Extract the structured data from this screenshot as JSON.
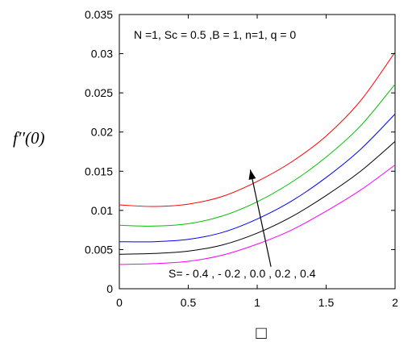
{
  "chart_data": {
    "type": "line",
    "title": "",
    "ylabel": "f′′(0)",
    "xlabel": "□",
    "xlim": [
      0,
      2
    ],
    "ylim": [
      0,
      0.035
    ],
    "x_ticks": [
      0,
      0.5,
      1,
      1.5,
      2
    ],
    "x_tick_labels": [
      "0",
      "0.5",
      "1",
      "1.5",
      "2"
    ],
    "y_ticks": [
      0,
      0.005,
      0.01,
      0.015,
      0.02,
      0.025,
      0.03,
      0.035
    ],
    "y_tick_labels": [
      "0",
      "0.005",
      "0.01",
      "0.015",
      "0.02",
      "0.025",
      "0.03",
      "0.035"
    ],
    "grid": false,
    "annotations": {
      "params": "N =1, Sc = 0.5 ,B = 1, n=1, q = 0",
      "series_label": "S= - 0.4 , - 0.2 , 0.0 , 0.2 , 0.4",
      "arrow_from": [
        1.1,
        0.0028
      ],
      "arrow_to": [
        0.95,
        0.0152
      ]
    },
    "x": [
      0,
      0.25,
      0.5,
      0.75,
      1.0,
      1.25,
      1.5,
      1.75,
      2.0
    ],
    "series": [
      {
        "color": "#ff0000",
        "values": [
          0.0107,
          0.0105,
          0.0108,
          0.0118,
          0.0137,
          0.0162,
          0.0195,
          0.024,
          0.0302
        ]
      },
      {
        "color": "#00c000",
        "values": [
          0.0081,
          0.008,
          0.0083,
          0.0093,
          0.0111,
          0.0136,
          0.0168,
          0.0208,
          0.0261
        ]
      },
      {
        "color": "#0000ff",
        "values": [
          0.006,
          0.006,
          0.0063,
          0.0072,
          0.0089,
          0.0112,
          0.0142,
          0.0178,
          0.0223
        ]
      },
      {
        "color": "#000000",
        "values": [
          0.0044,
          0.0045,
          0.0048,
          0.0056,
          0.0071,
          0.0092,
          0.0119,
          0.015,
          0.0188
        ]
      },
      {
        "color": "#ff00ff",
        "values": [
          0.0031,
          0.0032,
          0.0035,
          0.0043,
          0.0057,
          0.0075,
          0.0099,
          0.0126,
          0.0158
        ]
      }
    ]
  }
}
